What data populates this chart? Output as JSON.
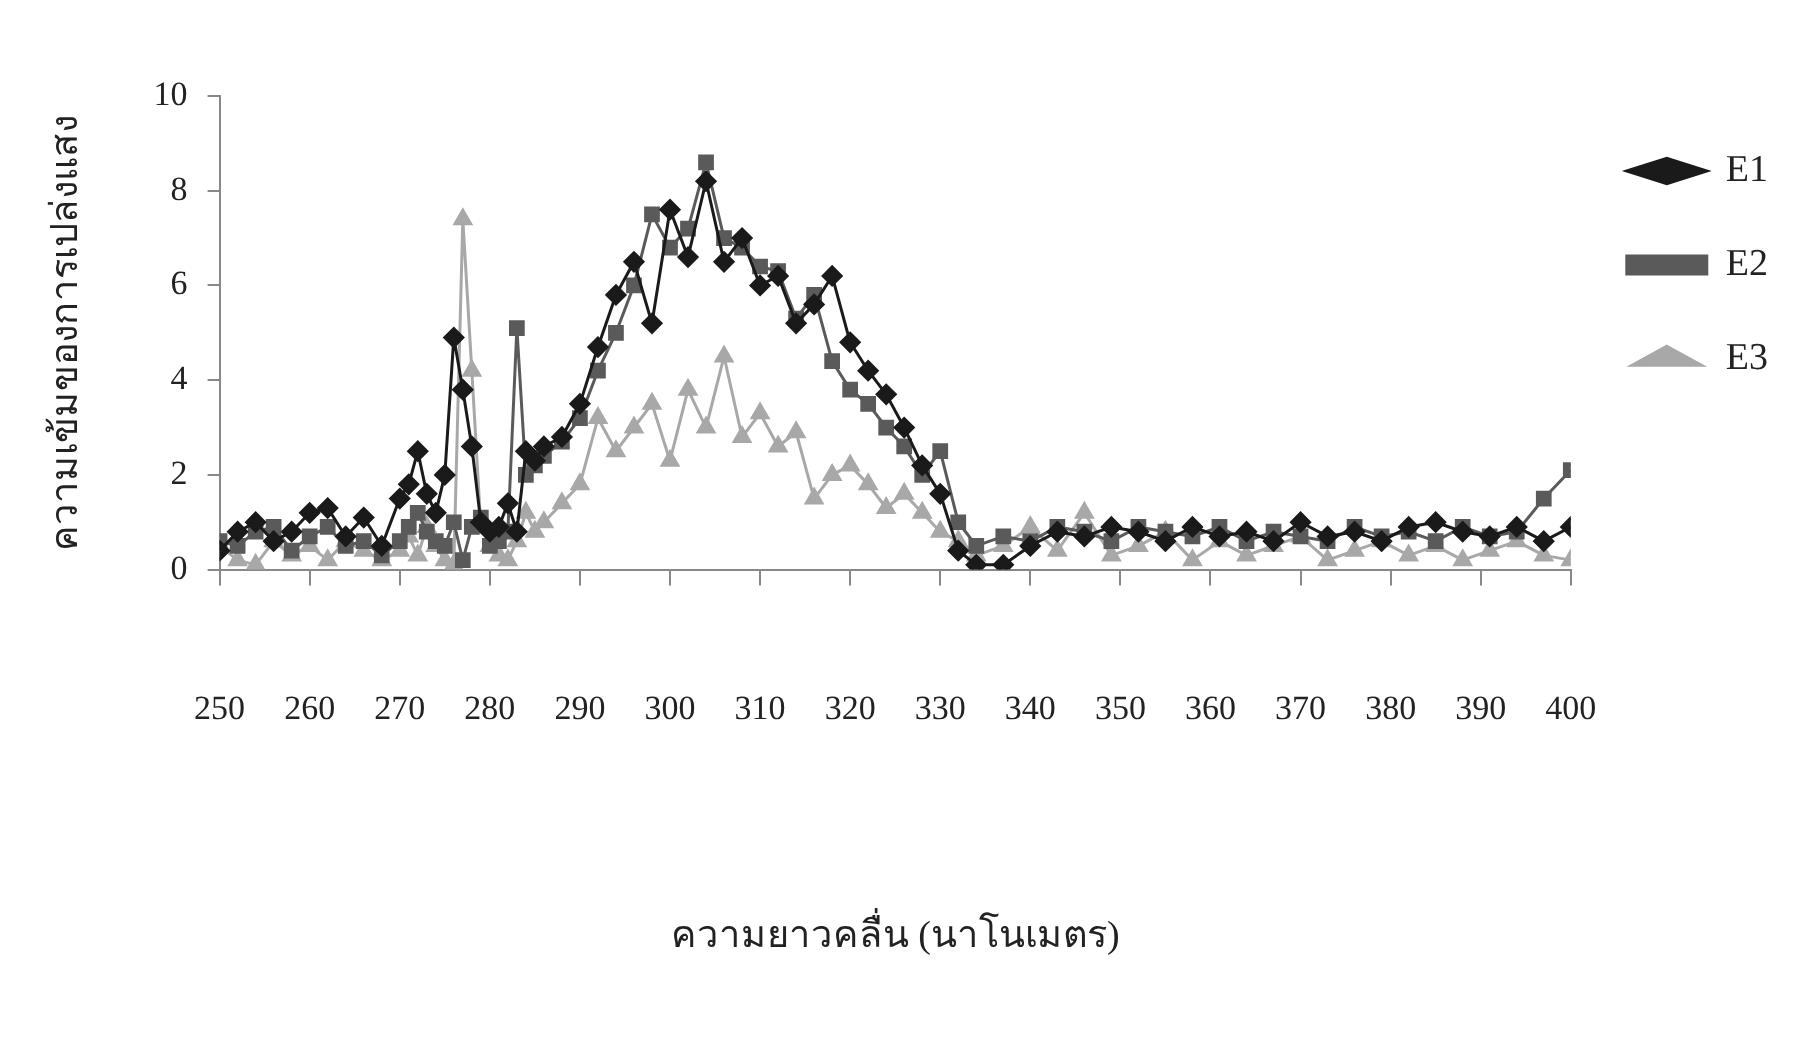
{
  "chart_data": {
    "type": "line",
    "xlabel": "ความยาวคลื่น (นาโนเมตร)",
    "ylabel": "ความเข้มของการเปล่งแสง",
    "x": [
      250,
      252,
      254,
      256,
      258,
      260,
      262,
      264,
      266,
      268,
      270,
      271,
      272,
      273,
      274,
      275,
      276,
      277,
      278,
      279,
      280,
      281,
      282,
      283,
      284,
      285,
      286,
      288,
      290,
      292,
      294,
      296,
      298,
      300,
      302,
      304,
      306,
      308,
      310,
      312,
      314,
      316,
      318,
      320,
      322,
      324,
      326,
      328,
      330,
      332,
      334,
      337,
      340,
      343,
      346,
      349,
      352,
      355,
      358,
      361,
      364,
      367,
      370,
      373,
      376,
      379,
      382,
      385,
      388,
      391,
      394,
      397,
      400
    ],
    "series": [
      {
        "name": "E1",
        "color": "#1a1a1a",
        "marker": "diamond",
        "values": [
          0.4,
          0.8,
          1.0,
          0.6,
          0.8,
          1.2,
          1.3,
          0.7,
          1.1,
          0.5,
          1.5,
          1.8,
          2.5,
          1.6,
          1.2,
          2.0,
          4.9,
          3.8,
          2.6,
          1.0,
          0.8,
          0.9,
          1.4,
          0.8,
          2.5,
          2.3,
          2.6,
          2.8,
          3.5,
          4.7,
          5.8,
          6.5,
          5.2,
          7.6,
          6.6,
          8.2,
          6.5,
          7.0,
          6.0,
          6.2,
          5.2,
          5.6,
          6.2,
          4.8,
          4.2,
          3.7,
          3.0,
          2.2,
          1.6,
          0.4,
          0.1,
          0.1,
          0.5,
          0.8,
          0.7,
          0.9,
          0.8,
          0.6,
          0.9,
          0.7,
          0.8,
          0.6,
          1.0,
          0.7,
          0.8,
          0.6,
          0.9,
          1.0,
          0.8,
          0.7,
          0.9,
          0.6,
          0.9
        ]
      },
      {
        "name": "E2",
        "color": "#5a5a5a",
        "marker": "square",
        "values": [
          0.6,
          0.5,
          0.8,
          0.9,
          0.4,
          0.7,
          0.9,
          0.5,
          0.6,
          0.3,
          0.6,
          0.9,
          1.2,
          0.8,
          0.6,
          0.5,
          1.0,
          0.2,
          0.9,
          1.1,
          0.5,
          0.6,
          0.8,
          5.1,
          2.0,
          2.2,
          2.4,
          2.7,
          3.2,
          4.2,
          5.0,
          6.0,
          7.5,
          6.8,
          7.2,
          8.6,
          7.0,
          6.8,
          6.4,
          6.3,
          5.3,
          5.8,
          4.4,
          3.8,
          3.5,
          3.0,
          2.6,
          2.0,
          2.5,
          1.0,
          0.5,
          0.7,
          0.6,
          0.9,
          0.8,
          0.6,
          0.9,
          0.8,
          0.7,
          0.9,
          0.6,
          0.8,
          0.7,
          0.6,
          0.9,
          0.7,
          0.8,
          0.6,
          0.9,
          0.7,
          0.8,
          1.5,
          2.1
        ]
      },
      {
        "name": "E3",
        "color": "#a8a8a8",
        "marker": "triangle",
        "values": [
          0.5,
          0.2,
          0.1,
          0.6,
          0.3,
          0.5,
          0.2,
          0.6,
          0.4,
          0.2,
          0.4,
          0.7,
          0.3,
          0.9,
          0.5,
          0.2,
          0.1,
          7.4,
          4.2,
          0.9,
          0.5,
          0.3,
          0.2,
          0.6,
          1.2,
          0.8,
          1.0,
          1.4,
          1.8,
          3.2,
          2.5,
          3.0,
          3.5,
          2.3,
          3.8,
          3.0,
          4.5,
          2.8,
          3.3,
          2.6,
          2.9,
          1.5,
          2.0,
          2.2,
          1.8,
          1.3,
          1.6,
          1.2,
          0.8,
          0.6,
          0.3,
          0.5,
          0.9,
          0.4,
          1.2,
          0.3,
          0.5,
          0.8,
          0.2,
          0.6,
          0.3,
          0.5,
          0.7,
          0.2,
          0.4,
          0.6,
          0.3,
          0.5,
          0.2,
          0.4,
          0.6,
          0.3,
          0.2
        ]
      }
    ],
    "xlim": [
      250,
      400
    ],
    "xticks": [
      250,
      260,
      270,
      280,
      290,
      300,
      310,
      320,
      330,
      340,
      350,
      360,
      370,
      380,
      390,
      400
    ],
    "ylim": [
      0,
      10
    ],
    "yticks": [
      0,
      2,
      4,
      6,
      8,
      10
    ],
    "grid": false,
    "legend": "top right",
    "line_style": "solid"
  }
}
